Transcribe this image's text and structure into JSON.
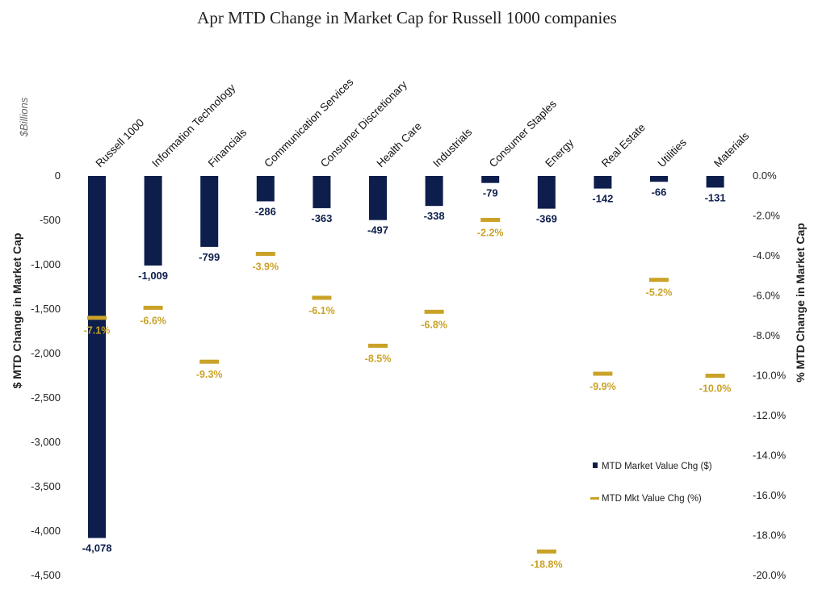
{
  "chart_data": {
    "type": "bar",
    "title": "Apr MTD Change in Market Cap for Russell 1000 companies",
    "unit_label": "$Billions",
    "ylabel": "$ MTD Change in Market Cap",
    "y2label": "% MTD Change in Market Cap",
    "ylim": [
      -4500,
      0
    ],
    "y2lim": [
      -20,
      0
    ],
    "yticks": [
      0,
      -500,
      -1000,
      -1500,
      -2000,
      -2500,
      -3000,
      -3500,
      -4000,
      -4500
    ],
    "ytick_labels": [
      "0",
      "-500",
      "-1,000",
      "-1,500",
      "-2,000",
      "-2,500",
      "-3,000",
      "-3,500",
      "-4,000",
      "-4,500"
    ],
    "y2ticks": [
      0,
      -2,
      -4,
      -6,
      -8,
      -10,
      -12,
      -14,
      -16,
      -18,
      -20
    ],
    "y2tick_labels": [
      "0.0%",
      "-2.0%",
      "-4.0%",
      "-6.0%",
      "-8.0%",
      "-10.0%",
      "-12.0%",
      "-14.0%",
      "-16.0%",
      "-18.0%",
      "-20.0%"
    ],
    "categories": [
      "Russell 1000",
      "Information Technology",
      "Financials",
      "Communication Services",
      "Consumer Discretionary",
      "Health Care",
      "Industrials",
      "Consumer Staples",
      "Energy",
      "Real Estate",
      "Utilities",
      "Materials"
    ],
    "series": [
      {
        "name": "MTD Market Value Chg ($)",
        "axis": "left",
        "color": "#0d1e4c",
        "values": [
          -4078,
          -1009,
          -799,
          -286,
          -363,
          -497,
          -338,
          -79,
          -369,
          -142,
          -66,
          -131
        ],
        "labels": [
          "-4,078",
          "-1,009",
          "-799",
          "-286",
          "-363",
          "-497",
          "-338",
          "-79",
          "-369",
          "-142",
          "-66",
          "-131"
        ]
      },
      {
        "name": "MTD Mkt Value Chg (%)",
        "axis": "right",
        "color": "#c9a227",
        "values": [
          -7.1,
          -6.6,
          -9.3,
          -3.9,
          -6.1,
          -8.5,
          -6.8,
          -2.2,
          -18.8,
          -9.9,
          -5.2,
          -10.0
        ],
        "labels": [
          "-7.1%",
          "-6.6%",
          "-9.3%",
          "-3.9%",
          "-6.1%",
          "-8.5%",
          "-6.8%",
          "-2.2%",
          "-18.8%",
          "-9.9%",
          "-5.2%",
          "-10.0%"
        ]
      }
    ],
    "legend_position": "bottom-right"
  }
}
